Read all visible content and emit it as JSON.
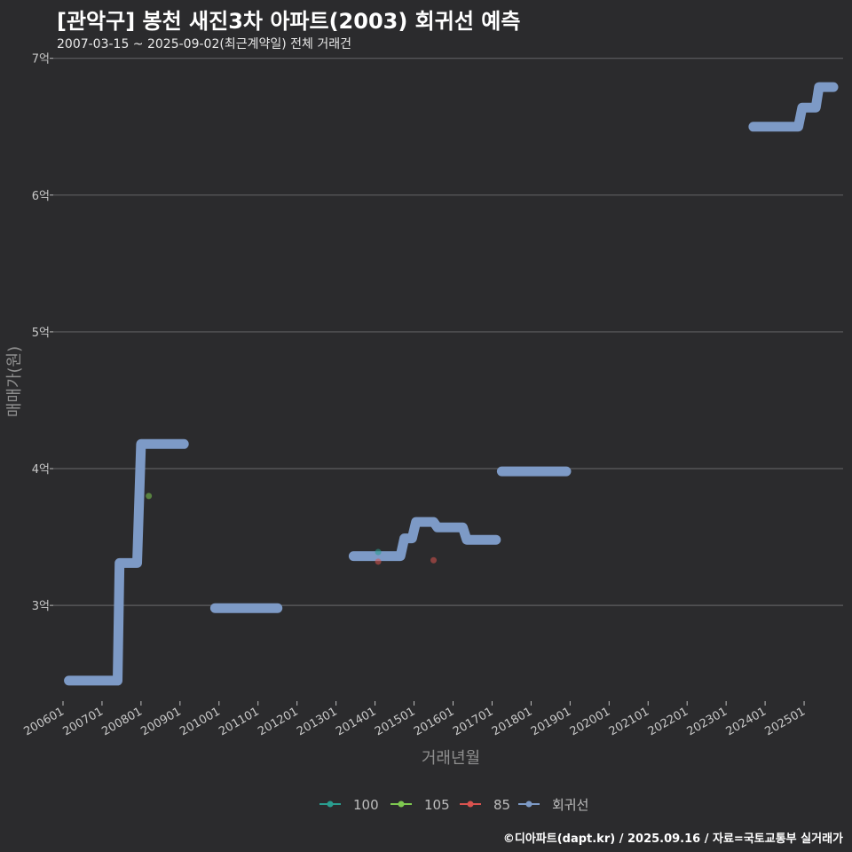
{
  "chart_data": {
    "type": "line",
    "title": "[관악구] 봉천 새진3차 아파트(2003) 회귀선 예측",
    "subtitle": "2007-03-15 ~ 2025-09-02(최근계약일) 전체 거래건",
    "xlabel": "거래년월",
    "ylabel": "매매가(원)",
    "credit": "©디아파트(dapt.kr) / 2025.09.16 / 자료=국토교통부 실거래가",
    "ylim": [
      2.3,
      7.05
    ],
    "y_ticks": [
      {
        "value": 3,
        "label": "3억"
      },
      {
        "value": 4,
        "label": "4억"
      },
      {
        "value": 5,
        "label": "5억"
      },
      {
        "value": 6,
        "label": "6억"
      },
      {
        "value": 7,
        "label": "7억"
      }
    ],
    "xlim": [
      2005.75,
      2026.0
    ],
    "x_ticks": [
      {
        "value": 2006,
        "label": "200601"
      },
      {
        "value": 2007,
        "label": "200701"
      },
      {
        "value": 2008,
        "label": "200801"
      },
      {
        "value": 2009,
        "label": "200901"
      },
      {
        "value": 2010,
        "label": "201001"
      },
      {
        "value": 2011,
        "label": "201101"
      },
      {
        "value": 2012,
        "label": "201201"
      },
      {
        "value": 2013,
        "label": "201301"
      },
      {
        "value": 2014,
        "label": "201401"
      },
      {
        "value": 2015,
        "label": "201501"
      },
      {
        "value": 2016,
        "label": "201601"
      },
      {
        "value": 2017,
        "label": "201701"
      },
      {
        "value": 2018,
        "label": "201801"
      },
      {
        "value": 2019,
        "label": "201901"
      },
      {
        "value": 2020,
        "label": "202001"
      },
      {
        "value": 2021,
        "label": "202101"
      },
      {
        "value": 2022,
        "label": "202201"
      },
      {
        "value": 2023,
        "label": "202301"
      },
      {
        "value": 2024,
        "label": "202401"
      },
      {
        "value": 2025,
        "label": "202501"
      }
    ],
    "series": [
      {
        "name": "100",
        "kind": "points",
        "color": "#2a9d8f",
        "points": [
          {
            "x": 2014.08,
            "y": 3.39
          }
        ]
      },
      {
        "name": "105",
        "kind": "points",
        "color": "#7ec850",
        "points": [
          {
            "x": 2008.2,
            "y": 3.8
          }
        ]
      },
      {
        "name": "85",
        "kind": "points",
        "color": "#d9534f",
        "points": [
          {
            "x": 2014.08,
            "y": 3.32
          },
          {
            "x": 2015.5,
            "y": 3.33
          }
        ]
      },
      {
        "name": "회귀선",
        "kind": "step",
        "color": "#7d9ac6",
        "segments": [
          [
            [
              2006.15,
              2.45
            ],
            [
              2007.4,
              2.45
            ],
            [
              2007.45,
              3.31
            ],
            [
              2007.9,
              3.31
            ],
            [
              2008.0,
              4.18
            ],
            [
              2009.1,
              4.18
            ]
          ],
          [
            [
              2009.9,
              2.98
            ],
            [
              2011.5,
              2.98
            ]
          ],
          [
            [
              2013.45,
              3.36
            ],
            [
              2014.65,
              3.36
            ],
            [
              2014.75,
              3.49
            ],
            [
              2014.95,
              3.49
            ],
            [
              2015.05,
              3.61
            ],
            [
              2015.5,
              3.61
            ],
            [
              2015.6,
              3.57
            ],
            [
              2016.25,
              3.57
            ],
            [
              2016.35,
              3.48
            ],
            [
              2017.1,
              3.48
            ]
          ],
          [
            [
              2017.25,
              3.98
            ],
            [
              2018.9,
              3.98
            ]
          ],
          [
            [
              2023.7,
              6.5
            ],
            [
              2024.85,
              6.5
            ],
            [
              2024.95,
              6.64
            ],
            [
              2025.3,
              6.64
            ],
            [
              2025.38,
              6.79
            ],
            [
              2025.75,
              6.79
            ]
          ]
        ]
      }
    ]
  }
}
